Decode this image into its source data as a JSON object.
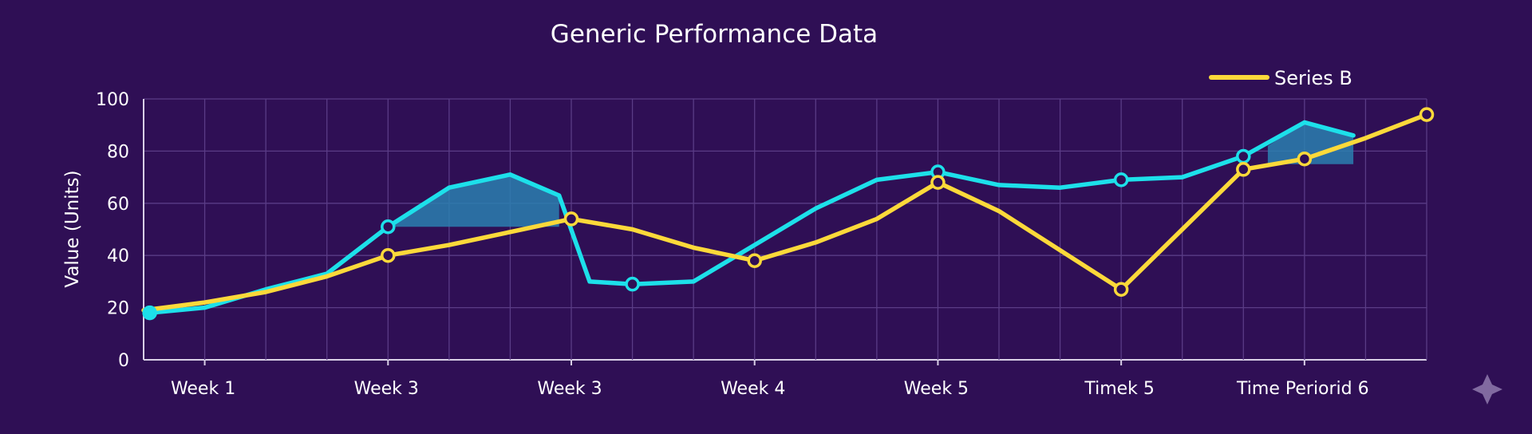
{
  "chart_data": {
    "type": "line",
    "title": "Generic Performance Data",
    "ylabel": "Value (Units)",
    "xlabel": "",
    "ylim": [
      0,
      100
    ],
    "yticks": [
      0,
      20,
      40,
      60,
      80,
      100
    ],
    "x_tick_labels": [
      "Week 1",
      "Week 3",
      "Week 3",
      "Week 4",
      "Week 5",
      "Timek 5",
      "Time Periorid 6"
    ],
    "grid": true,
    "legend": {
      "position": "top-right",
      "entries": [
        "Series B"
      ]
    },
    "colors": {
      "background": "#2f0f55",
      "grid": "#5a3c86",
      "series_a": "#1de0ea",
      "series_b": "#fcd93a",
      "fill": "#2a7fb0"
    },
    "series": [
      {
        "name": "",
        "color": "#1de0ea",
        "points": [
          {
            "x": 0.05,
            "y": 18
          },
          {
            "x": 0.5,
            "y": 20
          },
          {
            "x": 1.0,
            "y": 27
          },
          {
            "x": 1.5,
            "y": 33
          },
          {
            "x": 2.0,
            "y": 51
          },
          {
            "x": 2.5,
            "y": 66
          },
          {
            "x": 3.0,
            "y": 71
          },
          {
            "x": 3.4,
            "y": 63
          },
          {
            "x": 3.65,
            "y": 30
          },
          {
            "x": 4.0,
            "y": 29
          },
          {
            "x": 4.5,
            "y": 30
          },
          {
            "x": 5.0,
            "y": 44
          },
          {
            "x": 5.5,
            "y": 58
          },
          {
            "x": 6.0,
            "y": 69
          },
          {
            "x": 6.5,
            "y": 72
          },
          {
            "x": 7.0,
            "y": 67
          },
          {
            "x": 7.5,
            "y": 66
          },
          {
            "x": 8.0,
            "y": 69
          },
          {
            "x": 8.5,
            "y": 70
          },
          {
            "x": 9.0,
            "y": 78
          },
          {
            "x": 9.5,
            "y": 91
          },
          {
            "x": 9.9,
            "y": 86
          }
        ],
        "markers": [
          0,
          4,
          9,
          14,
          17,
          19
        ]
      },
      {
        "name": "Series B",
        "color": "#fcd93a",
        "points": [
          {
            "x": 0.0,
            "y": 19
          },
          {
            "x": 0.5,
            "y": 22
          },
          {
            "x": 1.0,
            "y": 26
          },
          {
            "x": 1.5,
            "y": 32
          },
          {
            "x": 2.0,
            "y": 40
          },
          {
            "x": 2.5,
            "y": 44
          },
          {
            "x": 3.0,
            "y": 49
          },
          {
            "x": 3.5,
            "y": 54
          },
          {
            "x": 4.0,
            "y": 50
          },
          {
            "x": 4.5,
            "y": 43
          },
          {
            "x": 5.0,
            "y": 38
          },
          {
            "x": 5.5,
            "y": 45
          },
          {
            "x": 6.0,
            "y": 54
          },
          {
            "x": 6.5,
            "y": 68
          },
          {
            "x": 7.0,
            "y": 57
          },
          {
            "x": 7.5,
            "y": 42
          },
          {
            "x": 8.0,
            "y": 27
          },
          {
            "x": 8.5,
            "y": 50
          },
          {
            "x": 9.0,
            "y": 73
          },
          {
            "x": 9.5,
            "y": 77
          },
          {
            "x": 10.0,
            "y": 85
          },
          {
            "x": 10.5,
            "y": 94
          }
        ],
        "markers": [
          4,
          7,
          10,
          13,
          16,
          18,
          19,
          21
        ]
      }
    ],
    "shaded_regions": [
      {
        "points": [
          {
            "x": 2.0,
            "y": 51
          },
          {
            "x": 2.5,
            "y": 66
          },
          {
            "x": 3.0,
            "y": 71
          },
          {
            "x": 3.4,
            "y": 63
          },
          {
            "x": 3.4,
            "y": 51
          }
        ]
      },
      {
        "points": [
          {
            "x": 9.2,
            "y": 82
          },
          {
            "x": 9.5,
            "y": 91
          },
          {
            "x": 9.9,
            "y": 86
          },
          {
            "x": 9.9,
            "y": 75
          },
          {
            "x": 9.2,
            "y": 75
          }
        ]
      }
    ]
  }
}
